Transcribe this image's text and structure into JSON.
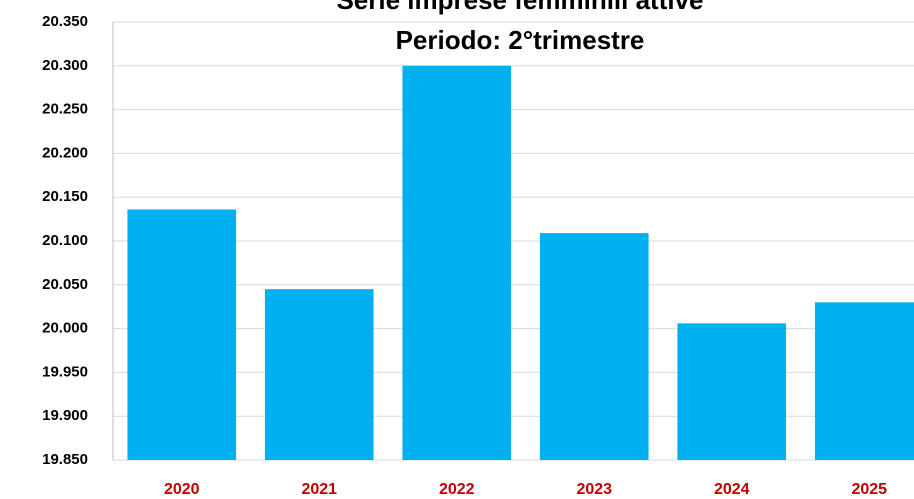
{
  "chart_data": {
    "type": "bar",
    "title": [
      "Serie imprese femminili attive",
      "Periodo: 2°trimestre"
    ],
    "categories": [
      "2020",
      "2021",
      "2022",
      "2023",
      "2024",
      "2025"
    ],
    "values": [
      20136,
      20045,
      20300,
      20109,
      20006,
      20030
    ],
    "color": "#00b0f0",
    "ylim": [
      19850,
      20350
    ],
    "yticks": [
      {
        "value": 19850,
        "label": "19.850"
      },
      {
        "value": 19900,
        "label": "19.900"
      },
      {
        "value": 19950,
        "label": "19.950"
      },
      {
        "value": 20000,
        "label": "20.000"
      },
      {
        "value": 20050,
        "label": "20.050"
      },
      {
        "value": 20100,
        "label": "20.100"
      },
      {
        "value": 20150,
        "label": "20.150"
      },
      {
        "value": 20200,
        "label": "20.200"
      },
      {
        "value": 20250,
        "label": "20.250"
      },
      {
        "value": 20300,
        "label": "20.300"
      },
      {
        "value": 20350,
        "label": "20.350"
      }
    ],
    "grid": true
  }
}
